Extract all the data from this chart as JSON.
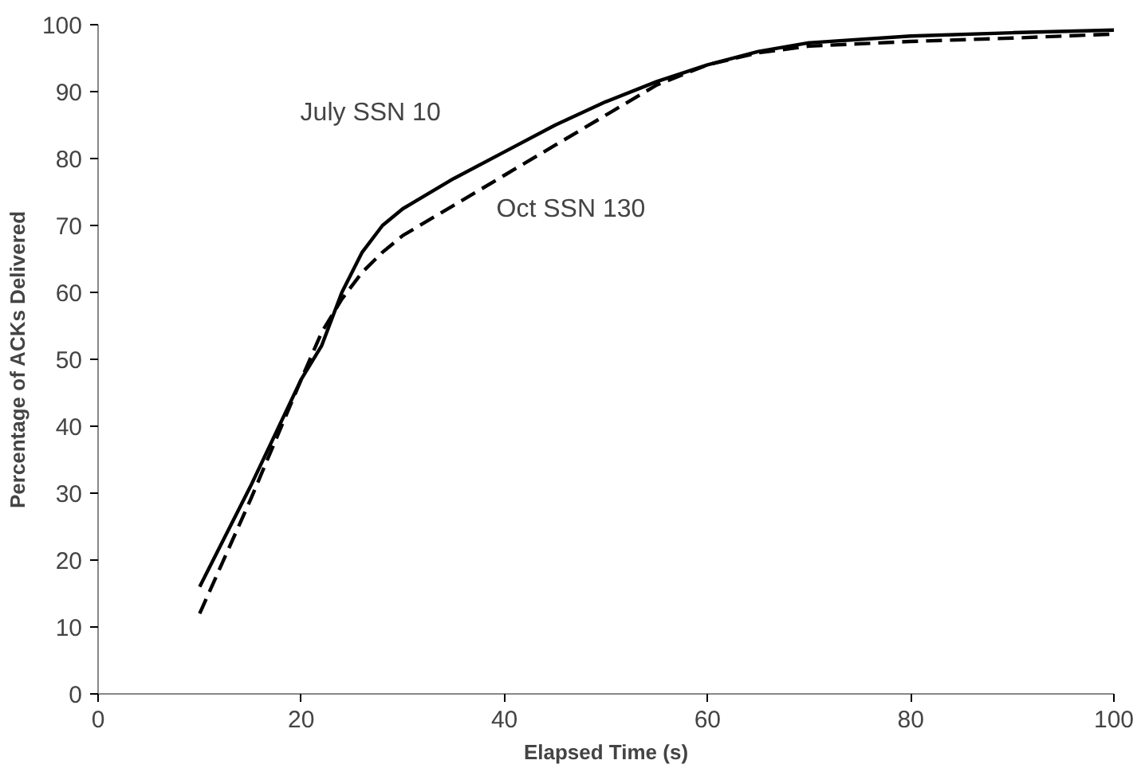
{
  "chart_data": {
    "type": "line",
    "xlabel": "Elapsed Time (s)",
    "ylabel": "Percentage of ACKs Delivered",
    "xlim": [
      0,
      100
    ],
    "ylim": [
      0,
      100
    ],
    "xticks": [
      0,
      20,
      40,
      60,
      80,
      100
    ],
    "yticks": [
      0,
      10,
      20,
      30,
      40,
      50,
      60,
      70,
      80,
      90,
      100
    ],
    "grid": false,
    "series": [
      {
        "name": "July SSN 10",
        "color": "#000000",
        "line_style": "solid",
        "x": [
          10,
          15,
          20,
          22,
          24,
          26,
          28,
          30,
          35,
          40,
          45,
          50,
          55,
          60,
          65,
          70,
          80,
          90,
          100
        ],
        "values": [
          16,
          31,
          47,
          52,
          60,
          66,
          70,
          72.5,
          77,
          81,
          85,
          88.5,
          91.5,
          94,
          96,
          97.3,
          98.3,
          98.8,
          99.2
        ]
      },
      {
        "name": "Oct SSN 130",
        "color": "#000000",
        "line_style": "dashed",
        "x": [
          10,
          15,
          20,
          22,
          24,
          26,
          28,
          30,
          35,
          40,
          45,
          50,
          55,
          60,
          65,
          70,
          80,
          90,
          100
        ],
        "values": [
          12,
          29,
          47,
          54,
          59,
          63,
          66,
          68.5,
          73,
          77.5,
          82,
          86.5,
          91,
          94,
          95.8,
          96.8,
          97.5,
          98,
          98.6
        ]
      }
    ]
  }
}
